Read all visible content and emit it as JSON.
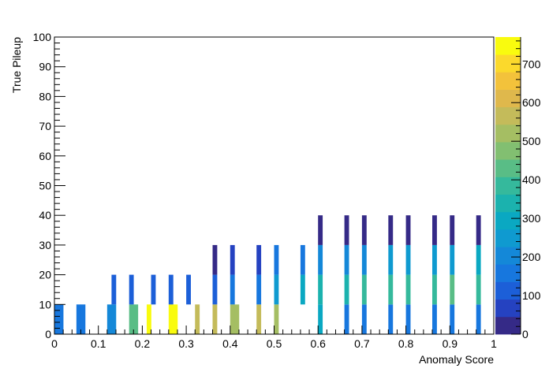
{
  "chart_data": {
    "type": "heatmap",
    "title": "",
    "xlabel": "Anomaly Score",
    "ylabel": "True Pileup",
    "xlim": [
      0,
      1
    ],
    "ylim": [
      0,
      100
    ],
    "x_bin_width": 0.01,
    "y_bin_width": 10,
    "x_ticks": [
      "0",
      "0.1",
      "0.2",
      "0.3",
      "0.4",
      "0.5",
      "0.6",
      "0.7",
      "0.8",
      "0.9",
      "1"
    ],
    "y_ticks": [
      "0",
      "10",
      "20",
      "30",
      "40",
      "50",
      "60",
      "70",
      "80",
      "90",
      "100"
    ],
    "colorbar": {
      "range": [
        0,
        770
      ],
      "ticks": [
        "0",
        "100",
        "200",
        "300",
        "400",
        "500",
        "600",
        "700"
      ],
      "palette": [
        "#352a87",
        "#2542c1",
        "#1c5fd8",
        "#1777de",
        "#1488d8",
        "#0f9ad0",
        "#0aa8c2",
        "#1bb2ae",
        "#35b99c",
        "#59bd86",
        "#82bf71",
        "#a5be63",
        "#c4bb5a",
        "#dfb84c",
        "#f3c23b",
        "#fbd92c",
        "#f9fb0e"
      ]
    },
    "rows": [
      {
        "pileup_bin": [
          0,
          10
        ],
        "values": [
          150,
          150,
          0,
          0,
          0,
          180,
          180,
          0,
          0,
          0,
          0,
          0,
          190,
          190,
          0,
          0,
          0,
          420,
          420,
          0,
          0,
          760,
          0,
          0,
          0,
          0,
          760,
          760,
          0,
          0,
          0,
          0,
          560,
          0,
          0,
          0,
          560,
          0,
          0,
          0,
          500,
          500,
          0,
          0,
          0,
          0,
          560,
          0,
          0,
          0,
          520,
          0,
          0,
          0,
          0,
          0,
          0,
          0,
          0,
          0,
          280,
          0,
          0,
          0,
          0,
          0,
          180,
          0,
          0,
          0,
          180,
          0,
          0,
          0,
          0,
          0,
          180,
          0,
          0,
          0,
          150,
          0,
          0,
          0,
          0,
          0,
          150,
          0,
          0,
          0,
          150,
          0,
          0,
          0,
          0,
          0,
          150,
          0,
          0,
          0
        ]
      },
      {
        "pileup_bin": [
          10,
          20
        ],
        "values": [
          0,
          0,
          0,
          0,
          0,
          0,
          0,
          0,
          0,
          0,
          0,
          0,
          0,
          100,
          0,
          0,
          0,
          100,
          0,
          0,
          0,
          0,
          100,
          0,
          0,
          0,
          100,
          0,
          0,
          0,
          110,
          0,
          0,
          0,
          0,
          0,
          130,
          0,
          0,
          0,
          150,
          0,
          0,
          0,
          0,
          0,
          180,
          0,
          0,
          0,
          230,
          0,
          0,
          0,
          0,
          0,
          300,
          0,
          0,
          0,
          320,
          0,
          0,
          0,
          0,
          0,
          350,
          0,
          0,
          0,
          370,
          0,
          0,
          0,
          0,
          0,
          380,
          0,
          0,
          0,
          400,
          0,
          0,
          0,
          0,
          0,
          400,
          0,
          0,
          0,
          430,
          0,
          0,
          0,
          0,
          0,
          400,
          0,
          0,
          0
        ]
      },
      {
        "pileup_bin": [
          20,
          30
        ],
        "values": [
          0,
          0,
          0,
          0,
          0,
          0,
          0,
          0,
          0,
          0,
          0,
          0,
          0,
          0,
          0,
          0,
          0,
          0,
          0,
          0,
          0,
          0,
          0,
          0,
          0,
          0,
          0,
          0,
          0,
          0,
          0,
          0,
          0,
          0,
          0,
          0,
          40,
          0,
          0,
          0,
          60,
          0,
          0,
          0,
          0,
          0,
          90,
          0,
          0,
          0,
          150,
          0,
          0,
          0,
          0,
          0,
          180,
          0,
          0,
          0,
          200,
          0,
          0,
          0,
          0,
          0,
          220,
          0,
          0,
          0,
          220,
          0,
          0,
          0,
          0,
          0,
          230,
          0,
          0,
          0,
          240,
          0,
          0,
          0,
          0,
          0,
          260,
          0,
          0,
          0,
          260,
          0,
          0,
          0,
          0,
          0,
          280,
          0,
          0,
          0
        ]
      },
      {
        "pileup_bin": [
          30,
          40
        ],
        "values": [
          0,
          0,
          0,
          0,
          0,
          0,
          0,
          0,
          0,
          0,
          0,
          0,
          0,
          0,
          0,
          0,
          0,
          0,
          0,
          0,
          0,
          0,
          0,
          0,
          0,
          0,
          0,
          0,
          0,
          0,
          0,
          0,
          0,
          0,
          0,
          0,
          0,
          0,
          0,
          0,
          0,
          0,
          0,
          0,
          0,
          0,
          0,
          0,
          0,
          0,
          0,
          0,
          0,
          0,
          0,
          0,
          0,
          0,
          0,
          0,
          30,
          0,
          0,
          0,
          0,
          0,
          30,
          0,
          0,
          0,
          30,
          0,
          0,
          0,
          0,
          0,
          30,
          0,
          0,
          0,
          30,
          0,
          0,
          0,
          0,
          0,
          30,
          0,
          0,
          0,
          30,
          0,
          0,
          0,
          0,
          0,
          30,
          0,
          0,
          0
        ]
      }
    ]
  }
}
